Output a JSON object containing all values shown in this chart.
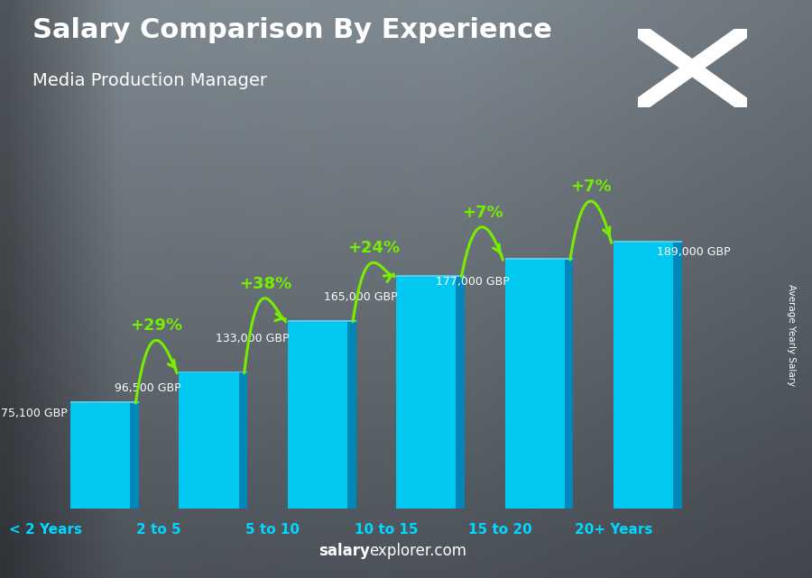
{
  "title": "Salary Comparison By Experience",
  "subtitle": "Media Production Manager",
  "categories": [
    "< 2 Years",
    "2 to 5",
    "5 to 10",
    "10 to 15",
    "15 to 20",
    "20+ Years"
  ],
  "values": [
    75100,
    96500,
    133000,
    165000,
    177000,
    189000
  ],
  "salary_labels": [
    "75,100 GBP",
    "96,500 GBP",
    "133,000 GBP",
    "165,000 GBP",
    "177,000 GBP",
    "189,000 GBP"
  ],
  "pct_labels": [
    "+29%",
    "+38%",
    "+24%",
    "+7%",
    "+7%"
  ],
  "bar_face_color": "#00c8f0",
  "bar_right_color": "#0088bb",
  "bar_top_color": "#55ddff",
  "bg_color_top": "#7a8a95",
  "bg_color_bottom": "#2a3540",
  "title_color": "#ffffff",
  "subtitle_color": "#ffffff",
  "salary_label_color": "#ffffff",
  "pct_color": "#77ee00",
  "arrow_color": "#77ee00",
  "xlabel_color": "#00d8ff",
  "watermark_salary_color": "#ffffff",
  "watermark_explorer_color": "#ffffff",
  "right_label": "Average Yearly Salary",
  "flag_blue": "#0040c8",
  "flag_white": "#ffffff",
  "ylim": [
    0,
    230000
  ],
  "pct_data": [
    [
      0,
      1,
      "+29%",
      0.52
    ],
    [
      1,
      2,
      "+38%",
      0.65
    ],
    [
      2,
      3,
      "+24%",
      0.76
    ],
    [
      3,
      4,
      "+7%",
      0.87
    ],
    [
      4,
      5,
      "+7%",
      0.95
    ]
  ]
}
